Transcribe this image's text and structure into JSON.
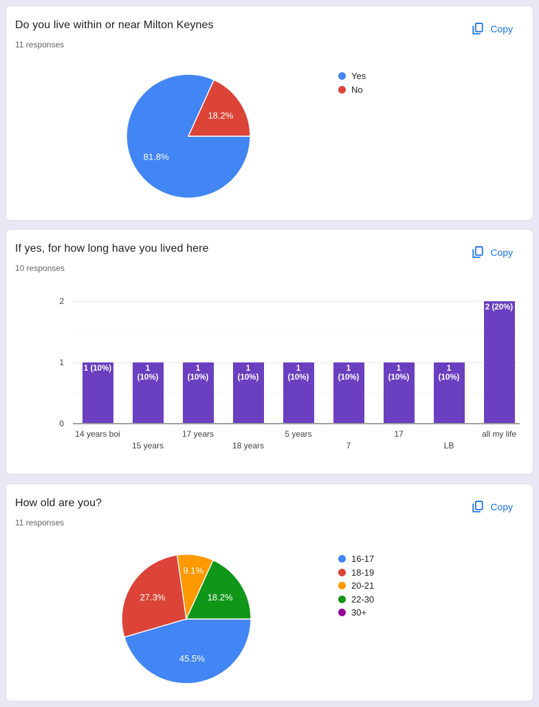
{
  "copy_label": "Copy",
  "accent_color": "#1a73e8",
  "page_bg": "#e9e7f3",
  "cards": [
    {
      "title": "Do you live within or near Milton Keynes",
      "responses": "11 responses",
      "chart_data": {
        "type": "pie",
        "labels": [
          "Yes",
          "No"
        ],
        "values": [
          81.8,
          18.2
        ],
        "value_labels": [
          "81.8%",
          "18.2%"
        ],
        "colors": [
          "#4285f4",
          "#db4437"
        ],
        "legend_position": "right"
      }
    },
    {
      "title": "If yes, for how long have you lived here",
      "responses": "10 responses",
      "chart_data": {
        "type": "bar",
        "categories": [
          "14 years boi",
          "15 years",
          "17 years",
          "18 years",
          "5 years",
          "7",
          "17",
          "LB",
          "all my life"
        ],
        "values": [
          1,
          1,
          1,
          1,
          1,
          1,
          1,
          1,
          2
        ],
        "value_labels": [
          "1 (10%)",
          "1\n(10%)",
          "1\n(10%)",
          "1\n(10%)",
          "1\n(10%)",
          "1\n(10%)",
          "1\n(10%)",
          "1\n(10%)",
          "2 (20%)"
        ],
        "bar_color": "#6a3fc0",
        "ylim": [
          0,
          2
        ],
        "yticks": [
          "0",
          "1",
          "2"
        ],
        "grid": true
      }
    },
    {
      "title": "How old are you?",
      "responses": "11 responses",
      "chart_data": {
        "type": "pie",
        "labels": [
          "16-17",
          "18-19",
          "20-21",
          "22-30",
          "30+"
        ],
        "values": [
          45.5,
          27.3,
          9.1,
          18.2,
          0
        ],
        "value_labels": [
          "45.5%",
          "27.3%",
          "9.1%",
          "18.2%",
          ""
        ],
        "colors": [
          "#4285f4",
          "#db4437",
          "#ff9900",
          "#109618",
          "#990099"
        ],
        "legend_position": "right"
      }
    }
  ]
}
